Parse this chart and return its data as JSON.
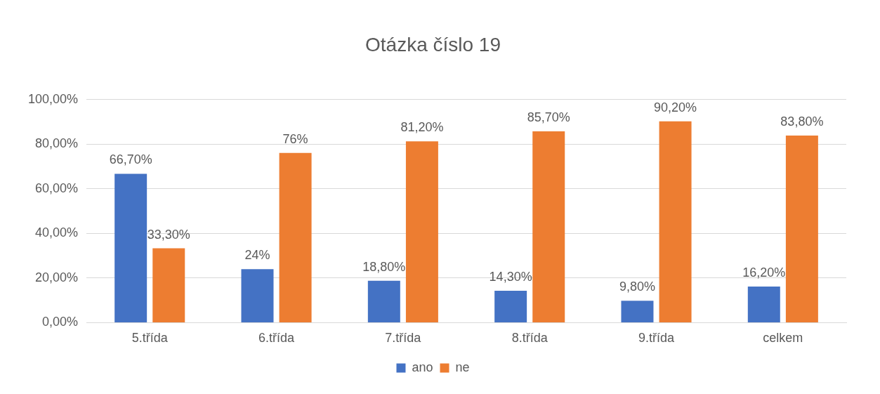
{
  "chart_data": {
    "type": "bar",
    "title": "Otázka číslo 19",
    "categories": [
      "5.třída",
      "6.třída",
      "7.třída",
      "8.třída",
      "9.třída",
      "celkem"
    ],
    "series": [
      {
        "name": "ano",
        "color": "#4472c4",
        "values": [
          66.7,
          24,
          18.8,
          14.3,
          9.8,
          16.2
        ],
        "value_labels": [
          "66,70%",
          "24%",
          "18,80%",
          "14,30%",
          "9,80%",
          "16,20%"
        ]
      },
      {
        "name": "ne",
        "color": "#ed7d31",
        "values": [
          33.3,
          76,
          81.2,
          85.7,
          90.2,
          83.8
        ],
        "value_labels": [
          "33,30%",
          "76%",
          "81,20%",
          "85,70%",
          "90,20%",
          "83,80%"
        ]
      }
    ],
    "ylim": [
      0,
      100
    ],
    "yticks": [
      {
        "value": 0,
        "label": "0,00%"
      },
      {
        "value": 20,
        "label": "20,00%"
      },
      {
        "value": 40,
        "label": "40,00%"
      },
      {
        "value": 60,
        "label": "60,00%"
      },
      {
        "value": 80,
        "label": "80,00%"
      },
      {
        "value": 100,
        "label": "100,00%"
      }
    ],
    "grid": "y",
    "legend": "bottom"
  }
}
